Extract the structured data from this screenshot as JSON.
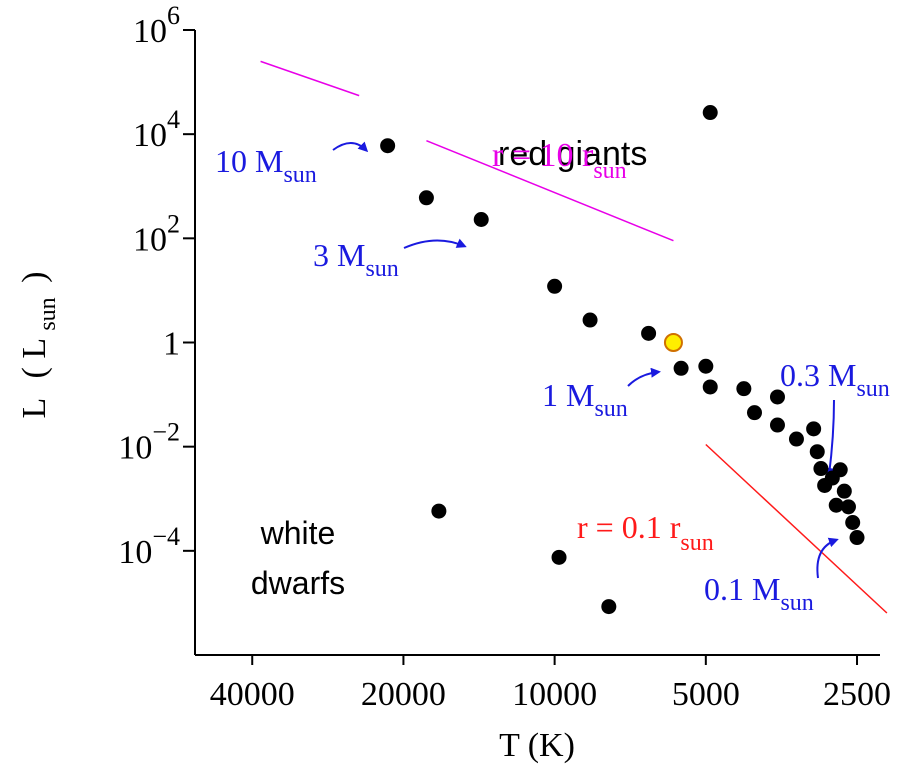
{
  "chart_data": {
    "type": "scatter",
    "title": "",
    "xlabel": "T (K)",
    "ylabel_parts": {
      "main": "L",
      "open": "(",
      "sym": "L",
      "sub": "sun",
      "close": ")"
    },
    "x_scale": "log",
    "x_reversed": true,
    "y_scale": "log",
    "xlim": [
      52000,
      2250
    ],
    "ylim": [
      1e-06,
      1000000.0
    ],
    "x_ticks": [
      {
        "value": 40000,
        "label": "40000"
      },
      {
        "value": 20000,
        "label": "20000"
      },
      {
        "value": 10000,
        "label": "10000"
      },
      {
        "value": 5000,
        "label": "5000"
      },
      {
        "value": 2500,
        "label": "2500"
      }
    ],
    "y_ticks": [
      {
        "value": 1000000,
        "base": "10",
        "exp": "6"
      },
      {
        "value": 10000,
        "base": "10",
        "exp": "4"
      },
      {
        "value": 100,
        "base": "10",
        "exp": "2"
      },
      {
        "value": 1,
        "base": "1",
        "exp": ""
      },
      {
        "value": 0.01,
        "base": "10",
        "exp": "−2"
      },
      {
        "value": 0.0001,
        "base": "10",
        "exp": "−4"
      }
    ],
    "stars": [
      {
        "T": 21500,
        "L": 6000
      },
      {
        "T": 4900,
        "L": 26000
      },
      {
        "T": 18000,
        "L": 600
      },
      {
        "T": 14000,
        "L": 230
      },
      {
        "T": 10000,
        "L": 12
      },
      {
        "T": 8500,
        "L": 2.7
      },
      {
        "T": 6500,
        "L": 1.5
      },
      {
        "T": 5600,
        "L": 0.32
      },
      {
        "T": 5000,
        "L": 0.35
      },
      {
        "T": 4900,
        "L": 0.14
      },
      {
        "T": 4200,
        "L": 0.13
      },
      {
        "T": 4000,
        "L": 0.045
      },
      {
        "T": 3600,
        "L": 0.09
      },
      {
        "T": 3600,
        "L": 0.026
      },
      {
        "T": 3300,
        "L": 0.014
      },
      {
        "T": 3050,
        "L": 0.022
      },
      {
        "T": 3000,
        "L": 0.008
      },
      {
        "T": 2950,
        "L": 0.0038
      },
      {
        "T": 2900,
        "L": 0.0018
      },
      {
        "T": 2800,
        "L": 0.0025
      },
      {
        "T": 2750,
        "L": 0.00075
      },
      {
        "T": 2700,
        "L": 0.0036
      },
      {
        "T": 2650,
        "L": 0.0014
      },
      {
        "T": 2600,
        "L": 0.0007
      },
      {
        "T": 2550,
        "L": 0.00035
      },
      {
        "T": 2500,
        "L": 0.00018
      },
      {
        "T": 17000,
        "L": 0.00058
      },
      {
        "T": 9800,
        "L": 7.5e-05
      },
      {
        "T": 7800,
        "L": 8.5e-06
      }
    ],
    "sun": {
      "T": 5800,
      "L": 1.0,
      "color": "#ffee00",
      "stroke": "#d07000"
    },
    "star_color": "#000000",
    "radius_lines": [
      {
        "color": "#e800e8",
        "segments": [
          {
            "from": {
              "T": 38500,
              "L": 250000
            },
            "to": {
              "T": 24500,
              "L": 55000
            }
          },
          {
            "from": {
              "T": 18000,
              "L": 7500
            },
            "to": {
              "T": 5800,
              "L": 90
            }
          }
        ],
        "label": {
          "prefix": "r = 10 r",
          "sub": "sun"
        }
      },
      {
        "color": "#ff1a1a",
        "segments": [
          {
            "from": {
              "T": 5000,
              "L": 0.011
            },
            "to": {
              "T": 2180,
              "L": 6.4e-06
            }
          }
        ],
        "label": {
          "prefix": "r = 0.1 r",
          "sub": "sun"
        }
      }
    ],
    "mass_labels": [
      {
        "main": "10 M",
        "sub": "sun",
        "color": "#1a1adf"
      },
      {
        "main": "3 M",
        "sub": "sun",
        "color": "#1a1adf"
      },
      {
        "main": "1 M",
        "sub": "sun",
        "color": "#1a1adf"
      },
      {
        "main": "0.3 M",
        "sub": "sun",
        "color": "#1a1adf"
      },
      {
        "main": "0.1 M",
        "sub": "sun",
        "color": "#1a1adf"
      }
    ],
    "region_labels": {
      "red_giants": "red giants",
      "white_dwarfs_line1": "white",
      "white_dwarfs_line2": "dwarfs"
    }
  }
}
